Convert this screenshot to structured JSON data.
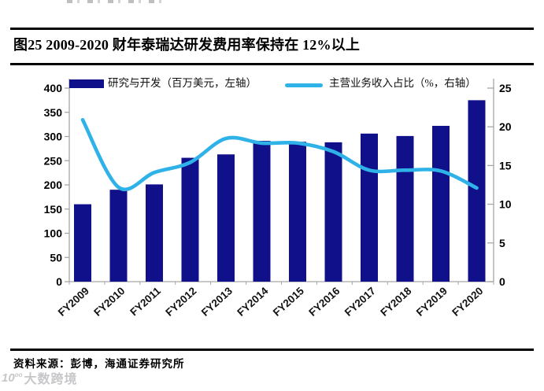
{
  "page": {
    "title": "图25 2009-2020 财年泰瑞达研发费用率保持在 12%以上",
    "source": "资料来源：彭博，海通证券研究所",
    "watermark": "大数跨境",
    "watermark_icon": "10oo-logo"
  },
  "colors": {
    "bar": "#10108B",
    "line": "#2FB2E8",
    "axis": "#A6A6A6",
    "tick_label": "#000000"
  },
  "chart_data": {
    "type": "bar",
    "subtype": "bar-line-combo",
    "categories": [
      "FY2009",
      "FY2010",
      "FY2011",
      "FY2012",
      "FY2013",
      "FY2014",
      "FY2015",
      "FY2016",
      "FY2017",
      "FY2018",
      "FY2019",
      "FY2020"
    ],
    "series": [
      {
        "name": "研究与开发（百万美元，左轴）",
        "type": "bar",
        "axis": "left",
        "color": "#10108B",
        "values": [
          160,
          190,
          201,
          256,
          263,
          291,
          289,
          288,
          306,
          301,
          322,
          375
        ]
      },
      {
        "name": "主营业务收入占比（%，右轴）",
        "type": "line",
        "axis": "right",
        "color": "#2FB2E8",
        "values": [
          20.9,
          12.2,
          14.1,
          15.4,
          18.5,
          17.9,
          17.9,
          16.8,
          14.4,
          14.4,
          14.3,
          12.1
        ]
      }
    ],
    "left_axis": {
      "min": 0,
      "max": 400,
      "step": 50
    },
    "right_axis": {
      "min": 0,
      "max": 25,
      "step": 5
    },
    "legend_position": "top",
    "grid": false,
    "title": "图25 2009-2020 财年泰瑞达研发费用率保持在 12%以上"
  }
}
